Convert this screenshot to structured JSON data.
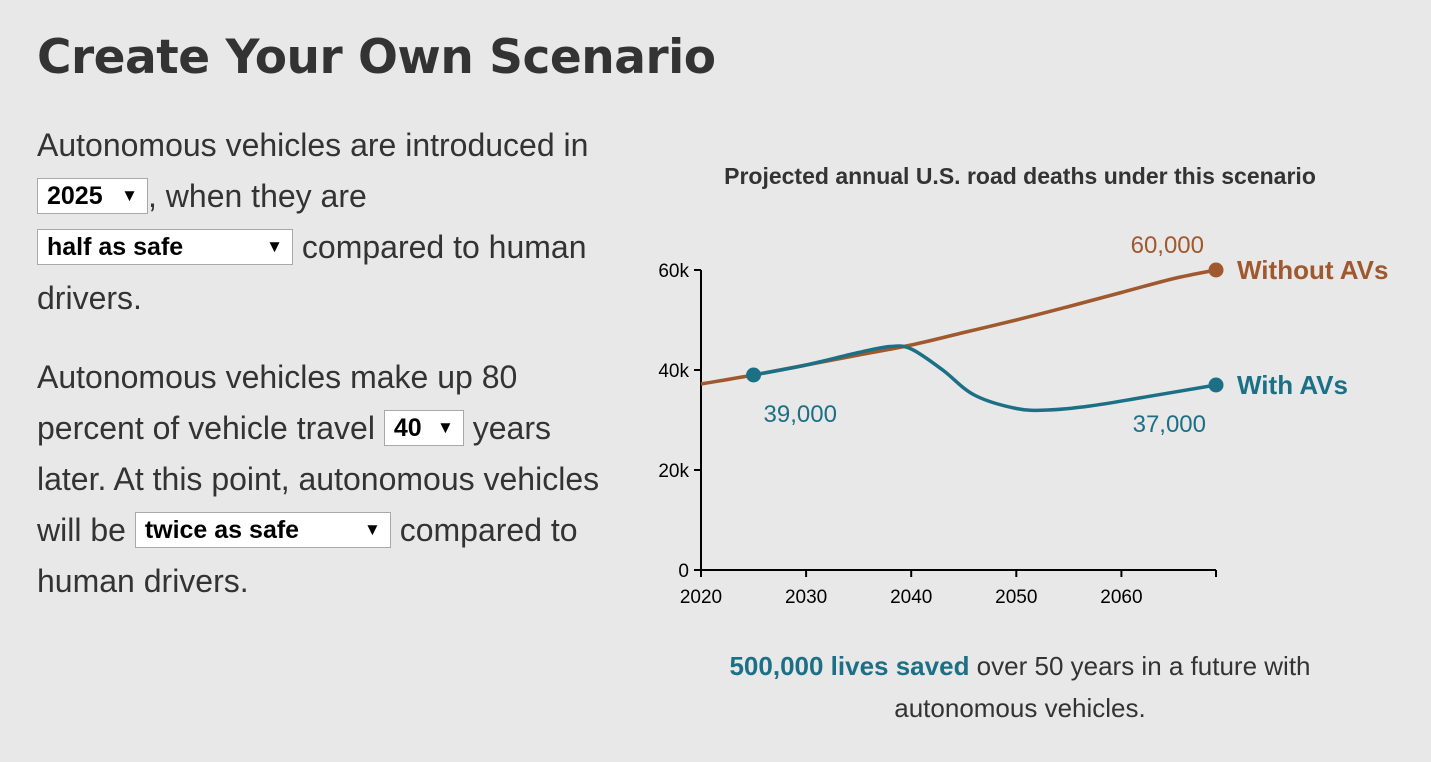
{
  "title": "Create Your Own Scenario",
  "paragraph1": {
    "before_year": "Autonomous vehicles are introduced in",
    "year_select": "2025",
    "between": ", when they are",
    "safety_select": "half as safe",
    "after": "compared to human drivers."
  },
  "paragraph2": {
    "before_years": "Autonomous vehicles make up 80 percent of vehicle travel",
    "years_select": "40",
    "between": "years later. At this point, autonomous vehicles will be",
    "safety_select": "twice as safe",
    "after": "compared to human drivers."
  },
  "dropdown_arrow": "▼",
  "caption": {
    "highlight": "500,000 lives saved",
    "rest": " over 50 years in a future with autonomous vehicles."
  },
  "colors": {
    "without": "#a0582e",
    "with": "#1c7085",
    "background": "#e8e8e8",
    "text": "#333333"
  },
  "chart_data": {
    "type": "line",
    "title": "Projected annual U.S. road deaths under this scenario",
    "xlim": [
      2020,
      2069
    ],
    "ylim": [
      0,
      60000
    ],
    "x_ticks": [
      2020,
      2030,
      2040,
      2050,
      2060
    ],
    "x_tick_labels": [
      "2020",
      "2030",
      "2040",
      "2050",
      "2060"
    ],
    "y_ticks": [
      0,
      20000,
      40000,
      60000
    ],
    "y_tick_labels": [
      "0",
      "20k",
      "40k",
      "60k"
    ],
    "grid": false,
    "series": [
      {
        "name": "Without AVs",
        "color": "#a0582e",
        "x": [
          2020,
          2025,
          2030,
          2035,
          2040,
          2045,
          2050,
          2055,
          2060,
          2065,
          2069
        ],
        "y": [
          37200,
          39000,
          41000,
          43000,
          45000,
          47500,
          50000,
          52700,
          55500,
          58300,
          60000
        ],
        "end_label": "60,000"
      },
      {
        "name": "With AVs",
        "color": "#1c7085",
        "x": [
          2025,
          2030,
          2035,
          2038,
          2040,
          2043,
          2046,
          2050,
          2053,
          2057,
          2062,
          2069
        ],
        "y": [
          39000,
          41000,
          43500,
          44700,
          44200,
          40000,
          35000,
          32300,
          32000,
          32800,
          34500,
          37000
        ],
        "start_label": "39,000",
        "end_label": "37,000"
      }
    ]
  }
}
